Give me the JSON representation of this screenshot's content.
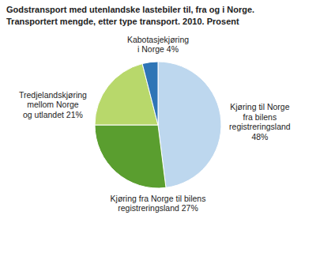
{
  "chart_data": {
    "type": "pie",
    "title": "Godstransport med utenlandske lastebiler til, fra og i Norge.",
    "subtitle": "Transportert mengde, etter type transport. 2010. Prosent",
    "categories": [
      "Kjøring til Norge\nfra bilens\nregistreringsland\n48%",
      "Kjøring fra Norge til bilens\nregistreringsland 27%",
      "Tredjelandskjøring\nmellom Norge\nog utlandet 21%",
      "Kabotasjekjøring\ni Norge 4%"
    ],
    "values": [
      48,
      27,
      21,
      4
    ],
    "colors": [
      "#bdd7ee",
      "#5a9e2f",
      "#b8d86b",
      "#2e75b6"
    ]
  }
}
